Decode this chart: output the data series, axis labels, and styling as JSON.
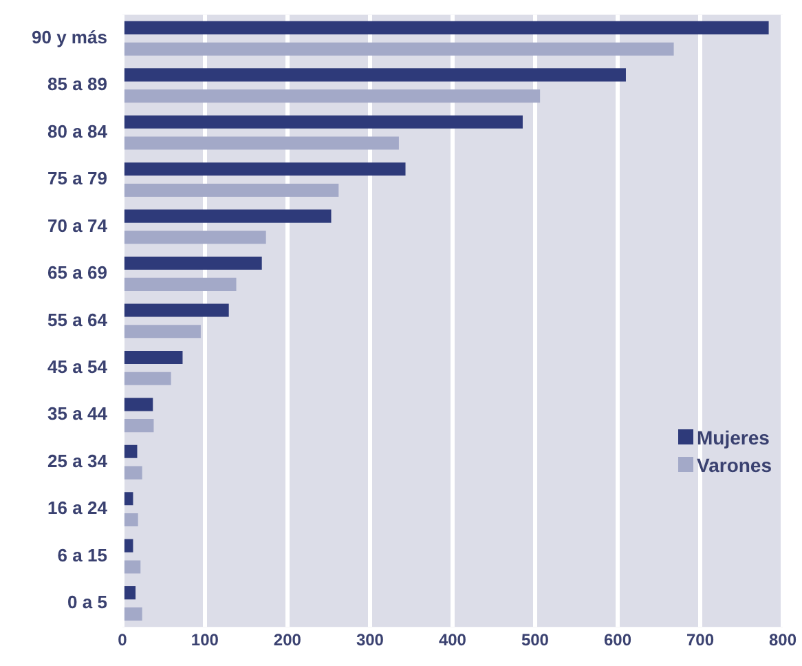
{
  "chart_data": {
    "type": "bar",
    "orientation": "horizontal",
    "categories": [
      "90 y más",
      "85 a 89",
      "80 a 84",
      "75 a 79",
      "70 a 74",
      "65 a 69",
      "55 a 64",
      "45 a 54",
      "35 a 44",
      "25 a 34",
      "16 a 24",
      "6 a 15",
      "0 a 5"
    ],
    "series": [
      {
        "name": "Mujeres",
        "color": "#2e3a7a",
        "values": [
          783,
          610,
          485,
          343,
          253,
          169,
          129,
          73,
          37,
          18,
          13,
          13,
          16
        ]
      },
      {
        "name": "Varones",
        "color": "#a3a9c8",
        "values": [
          668,
          506,
          335,
          262,
          174,
          138,
          95,
          59,
          38,
          24,
          19,
          22,
          24
        ]
      }
    ],
    "xlim": [
      0,
      800
    ],
    "xticks": [
      0,
      100,
      200,
      300,
      400,
      500,
      600,
      700,
      800
    ],
    "grid": "x",
    "legend": "bottom right"
  }
}
